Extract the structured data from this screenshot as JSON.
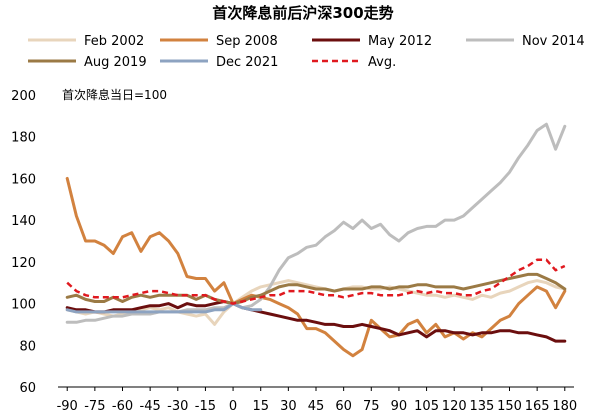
{
  "chart_data": {
    "type": "line",
    "title": "首次降息前后沪深300走势",
    "note": "首次降息当日=100",
    "xlabel": "",
    "ylabel": "",
    "xlim": [
      -95,
      185
    ],
    "ylim": [
      60,
      200
    ],
    "x_ticks": [
      -90,
      -75,
      -60,
      -45,
      -30,
      -15,
      0,
      15,
      30,
      45,
      60,
      75,
      90,
      105,
      120,
      135,
      150,
      165,
      180
    ],
    "y_ticks": [
      60,
      80,
      100,
      120,
      140,
      160,
      180,
      200
    ],
    "x": [
      -90,
      -85,
      -80,
      -75,
      -70,
      -65,
      -60,
      -55,
      -50,
      -45,
      -40,
      -35,
      -30,
      -25,
      -20,
      -15,
      -10,
      -5,
      0,
      5,
      10,
      15,
      20,
      25,
      30,
      35,
      40,
      45,
      50,
      55,
      60,
      65,
      70,
      75,
      80,
      85,
      90,
      95,
      100,
      105,
      110,
      115,
      120,
      125,
      130,
      135,
      140,
      145,
      150,
      155,
      160,
      165,
      170,
      175,
      180
    ],
    "series": [
      {
        "name": "Feb 2002",
        "color": "#E8D5BC",
        "dash": false,
        "values": [
          97,
          96,
          95,
          96,
          95,
          94,
          95,
          96,
          97,
          98,
          97,
          98,
          96,
          95,
          94,
          95,
          90,
          96,
          100,
          103,
          106,
          108,
          109,
          110,
          111,
          110,
          109,
          108,
          107,
          106,
          107,
          108,
          108,
          107,
          107,
          108,
          107,
          106,
          105,
          104,
          104,
          103,
          104,
          103,
          102,
          104,
          103,
          105,
          106,
          108,
          110,
          111,
          110,
          108,
          107
        ]
      },
      {
        "name": "Sep 2008",
        "color": "#D2823F",
        "dash": false,
        "values": [
          160,
          142,
          130,
          130,
          128,
          124,
          132,
          134,
          125,
          132,
          134,
          130,
          124,
          113,
          112,
          112,
          106,
          110,
          100,
          102,
          104,
          103,
          102,
          100,
          98,
          95,
          88,
          88,
          86,
          82,
          78,
          75,
          78,
          92,
          88,
          84,
          85,
          90,
          92,
          86,
          90,
          84,
          86,
          83,
          86,
          84,
          88,
          92,
          94,
          100,
          104,
          108,
          106,
          98,
          106
        ]
      },
      {
        "name": "May 2012",
        "color": "#6B0E0E",
        "dash": false,
        "values": [
          98,
          97,
          97,
          96,
          96,
          97,
          97,
          97,
          98,
          99,
          99,
          100,
          98,
          100,
          99,
          99,
          100,
          101,
          100,
          98,
          97,
          96,
          95,
          94,
          93,
          92,
          92,
          91,
          90,
          90,
          89,
          89,
          90,
          89,
          88,
          87,
          85,
          86,
          87,
          84,
          87,
          87,
          86,
          86,
          85,
          86,
          86,
          87,
          87,
          86,
          86,
          85,
          84,
          82,
          82
        ]
      },
      {
        "name": "Nov 2014",
        "color": "#BDBDBD",
        "dash": false,
        "values": [
          91,
          91,
          92,
          92,
          93,
          94,
          94,
          95,
          95,
          95,
          96,
          96,
          96,
          97,
          97,
          97,
          98,
          98,
          100,
          98,
          99,
          102,
          108,
          116,
          122,
          124,
          127,
          128,
          132,
          135,
          139,
          136,
          140,
          136,
          138,
          133,
          130,
          134,
          136,
          137,
          137,
          140,
          140,
          142,
          146,
          150,
          154,
          158,
          163,
          170,
          176,
          183,
          186,
          174,
          185
        ]
      },
      {
        "name": "Aug 2019",
        "color": "#9B7A45",
        "dash": false,
        "values": [
          103,
          104,
          102,
          101,
          101,
          103,
          101,
          103,
          104,
          103,
          104,
          104,
          104,
          104,
          102,
          104,
          102,
          101,
          100,
          101,
          103,
          104,
          106,
          108,
          109,
          109,
          108,
          107,
          107,
          106,
          107,
          107,
          107,
          108,
          108,
          107,
          108,
          108,
          109,
          109,
          108,
          108,
          108,
          107,
          108,
          109,
          110,
          111,
          112,
          113,
          114,
          114,
          112,
          110,
          107
        ]
      },
      {
        "name": "Dec 2021",
        "color": "#8DA3C1",
        "dash": false,
        "values": [
          97,
          96,
          96,
          96,
          96,
          96,
          96,
          96,
          96,
          96,
          96,
          96,
          96,
          96,
          96,
          96,
          97,
          97,
          100,
          98,
          97,
          97,
          null,
          null,
          null,
          null,
          null,
          null,
          null,
          null,
          null,
          null,
          null,
          null,
          null,
          null,
          null,
          null,
          null,
          null,
          null,
          null,
          null,
          null,
          null,
          null,
          null,
          null,
          null,
          null,
          null,
          null,
          null,
          null,
          null
        ]
      },
      {
        "name": "Avg.",
        "color": "#E0191F",
        "dash": true,
        "values": [
          110,
          106,
          104,
          103,
          103,
          103,
          103,
          104,
          105,
          106,
          106,
          105,
          104,
          104,
          104,
          104,
          102,
          101,
          100,
          101,
          102,
          103,
          104,
          104,
          106,
          106,
          106,
          105,
          104,
          104,
          103,
          104,
          105,
          105,
          104,
          104,
          104,
          105,
          106,
          105,
          106,
          105,
          105,
          104,
          104,
          106,
          107,
          110,
          113,
          116,
          118,
          121,
          121,
          116,
          118
        ]
      }
    ]
  }
}
